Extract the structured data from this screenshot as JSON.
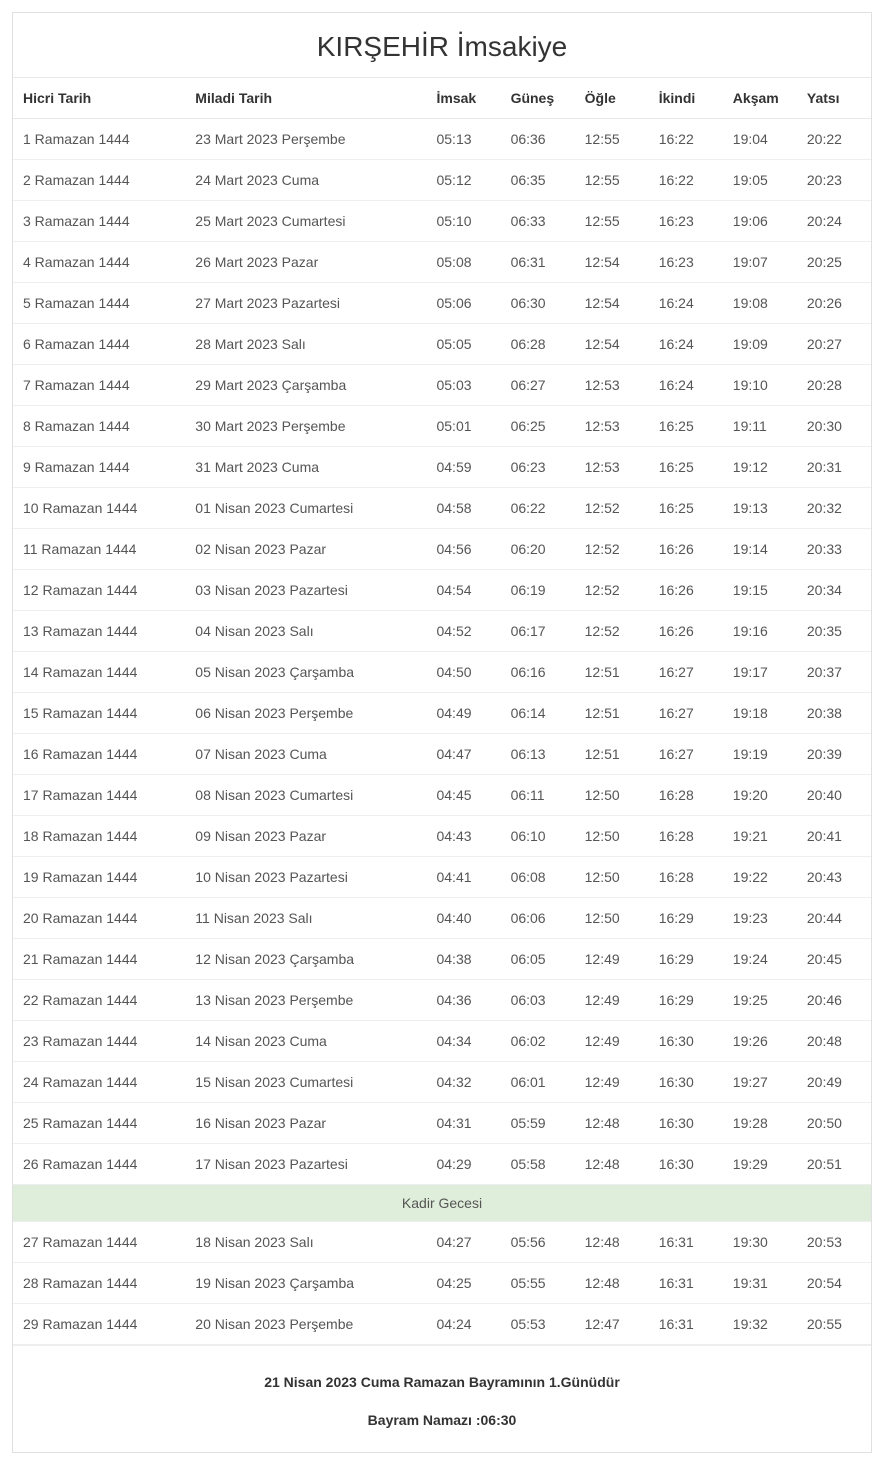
{
  "title": "KIRŞEHİR İmsakiye",
  "table": {
    "columns": [
      "Hicri Tarih",
      "Miladi Tarih",
      "İmsak",
      "Güneş",
      "Öğle",
      "İkindi",
      "Akşam",
      "Yatsı"
    ],
    "rows": [
      [
        "1 Ramazan 1444",
        "23 Mart 2023 Perşembe",
        "05:13",
        "06:36",
        "12:55",
        "16:22",
        "19:04",
        "20:22"
      ],
      [
        "2 Ramazan 1444",
        "24 Mart 2023 Cuma",
        "05:12",
        "06:35",
        "12:55",
        "16:22",
        "19:05",
        "20:23"
      ],
      [
        "3 Ramazan 1444",
        "25 Mart 2023 Cumartesi",
        "05:10",
        "06:33",
        "12:55",
        "16:23",
        "19:06",
        "20:24"
      ],
      [
        "4 Ramazan 1444",
        "26 Mart 2023 Pazar",
        "05:08",
        "06:31",
        "12:54",
        "16:23",
        "19:07",
        "20:25"
      ],
      [
        "5 Ramazan 1444",
        "27 Mart 2023 Pazartesi",
        "05:06",
        "06:30",
        "12:54",
        "16:24",
        "19:08",
        "20:26"
      ],
      [
        "6 Ramazan 1444",
        "28 Mart 2023 Salı",
        "05:05",
        "06:28",
        "12:54",
        "16:24",
        "19:09",
        "20:27"
      ],
      [
        "7 Ramazan 1444",
        "29 Mart 2023 Çarşamba",
        "05:03",
        "06:27",
        "12:53",
        "16:24",
        "19:10",
        "20:28"
      ],
      [
        "8 Ramazan 1444",
        "30 Mart 2023 Perşembe",
        "05:01",
        "06:25",
        "12:53",
        "16:25",
        "19:11",
        "20:30"
      ],
      [
        "9 Ramazan 1444",
        "31 Mart 2023 Cuma",
        "04:59",
        "06:23",
        "12:53",
        "16:25",
        "19:12",
        "20:31"
      ],
      [
        "10 Ramazan 1444",
        "01 Nisan 2023 Cumartesi",
        "04:58",
        "06:22",
        "12:52",
        "16:25",
        "19:13",
        "20:32"
      ],
      [
        "11 Ramazan 1444",
        "02 Nisan 2023 Pazar",
        "04:56",
        "06:20",
        "12:52",
        "16:26",
        "19:14",
        "20:33"
      ],
      [
        "12 Ramazan 1444",
        "03 Nisan 2023 Pazartesi",
        "04:54",
        "06:19",
        "12:52",
        "16:26",
        "19:15",
        "20:34"
      ],
      [
        "13 Ramazan 1444",
        "04 Nisan 2023 Salı",
        "04:52",
        "06:17",
        "12:52",
        "16:26",
        "19:16",
        "20:35"
      ],
      [
        "14 Ramazan 1444",
        "05 Nisan 2023 Çarşamba",
        "04:50",
        "06:16",
        "12:51",
        "16:27",
        "19:17",
        "20:37"
      ],
      [
        "15 Ramazan 1444",
        "06 Nisan 2023 Perşembe",
        "04:49",
        "06:14",
        "12:51",
        "16:27",
        "19:18",
        "20:38"
      ],
      [
        "16 Ramazan 1444",
        "07 Nisan 2023 Cuma",
        "04:47",
        "06:13",
        "12:51",
        "16:27",
        "19:19",
        "20:39"
      ],
      [
        "17 Ramazan 1444",
        "08 Nisan 2023 Cumartesi",
        "04:45",
        "06:11",
        "12:50",
        "16:28",
        "19:20",
        "20:40"
      ],
      [
        "18 Ramazan 1444",
        "09 Nisan 2023 Pazar",
        "04:43",
        "06:10",
        "12:50",
        "16:28",
        "19:21",
        "20:41"
      ],
      [
        "19 Ramazan 1444",
        "10 Nisan 2023 Pazartesi",
        "04:41",
        "06:08",
        "12:50",
        "16:28",
        "19:22",
        "20:43"
      ],
      [
        "20 Ramazan 1444",
        "11 Nisan 2023 Salı",
        "04:40",
        "06:06",
        "12:50",
        "16:29",
        "19:23",
        "20:44"
      ],
      [
        "21 Ramazan 1444",
        "12 Nisan 2023 Çarşamba",
        "04:38",
        "06:05",
        "12:49",
        "16:29",
        "19:24",
        "20:45"
      ],
      [
        "22 Ramazan 1444",
        "13 Nisan 2023 Perşembe",
        "04:36",
        "06:03",
        "12:49",
        "16:29",
        "19:25",
        "20:46"
      ],
      [
        "23 Ramazan 1444",
        "14 Nisan 2023 Cuma",
        "04:34",
        "06:02",
        "12:49",
        "16:30",
        "19:26",
        "20:48"
      ],
      [
        "24 Ramazan 1444",
        "15 Nisan 2023 Cumartesi",
        "04:32",
        "06:01",
        "12:49",
        "16:30",
        "19:27",
        "20:49"
      ],
      [
        "25 Ramazan 1444",
        "16 Nisan 2023 Pazar",
        "04:31",
        "05:59",
        "12:48",
        "16:30",
        "19:28",
        "20:50"
      ],
      [
        "26 Ramazan 1444",
        "17 Nisan 2023 Pazartesi",
        "04:29",
        "05:58",
        "12:48",
        "16:30",
        "19:29",
        "20:51"
      ]
    ],
    "special_row_label": "Kadir Gecesi",
    "rows_after": [
      [
        "27 Ramazan 1444",
        "18 Nisan 2023 Salı",
        "04:27",
        "05:56",
        "12:48",
        "16:31",
        "19:30",
        "20:53"
      ],
      [
        "28 Ramazan 1444",
        "19 Nisan 2023 Çarşamba",
        "04:25",
        "05:55",
        "12:48",
        "16:31",
        "19:31",
        "20:54"
      ],
      [
        "29 Ramazan 1444",
        "20 Nisan 2023 Perşembe",
        "04:24",
        "05:53",
        "12:47",
        "16:31",
        "19:32",
        "20:55"
      ]
    ]
  },
  "footer": {
    "line1": "21 Nisan 2023 Cuma Ramazan Bayramının 1.Günüdür",
    "line2": "Bayram Namazı :06:30"
  },
  "style": {
    "title_fontsize": 28,
    "body_fontsize": 14,
    "border_color": "#e0e0e0",
    "row_border_color": "#eeeeee",
    "text_color": "#333333",
    "cell_text_color": "#555555",
    "special_row_bg": "#dfeeda",
    "background_color": "#ffffff",
    "col_widths": [
      "20%",
      "28%",
      "8.6%",
      "8.6%",
      "8.6%",
      "8.6%",
      "8.6%",
      "8.6%"
    ]
  }
}
